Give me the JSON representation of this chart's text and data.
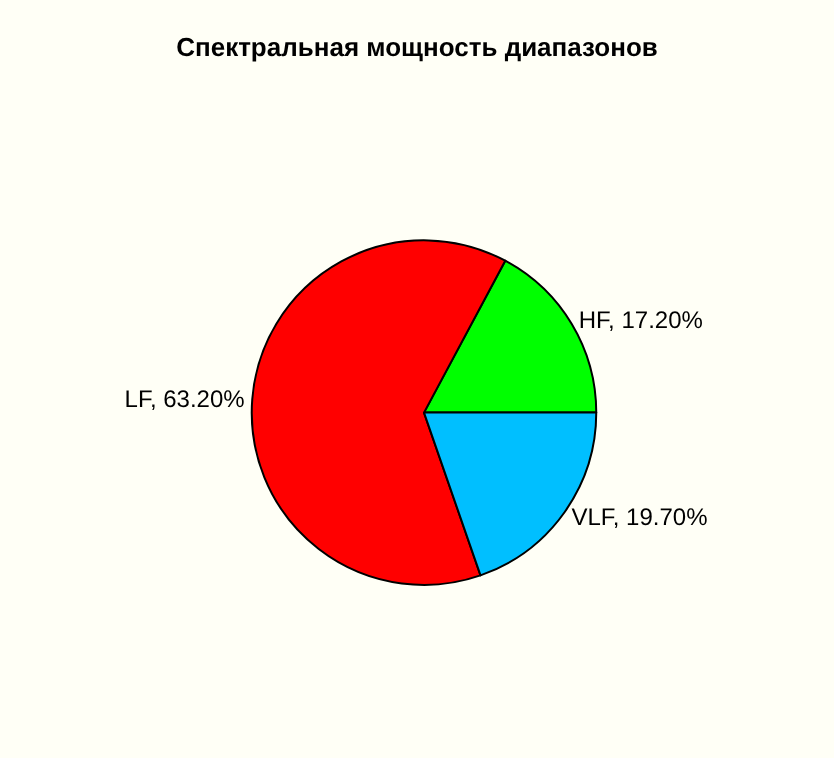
{
  "chart_data": {
    "type": "pie",
    "title": "Спектральная мощность диапазонов",
    "categories": [
      "HF",
      "LF",
      "VLF"
    ],
    "values": [
      17.2,
      63.2,
      19.7
    ],
    "colors": [
      "#00ff00",
      "#ff0000",
      "#00bfff"
    ],
    "value_labels": [
      "17.20%",
      "63.20%",
      "19.70%"
    ],
    "legend": false
  }
}
